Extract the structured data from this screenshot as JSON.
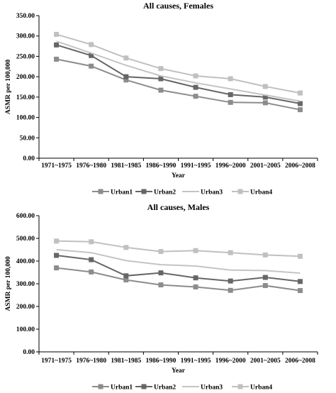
{
  "chart_data": [
    {
      "type": "line",
      "title": "All causes, Females",
      "xlabel": "Year",
      "ylabel": "ASMR per 100,000",
      "ylim": [
        0,
        350
      ],
      "yticks": [
        "0.00",
        "50.00",
        "100.00",
        "150.00",
        "200.00",
        "250.00",
        "300.00",
        "350.00"
      ],
      "categories": [
        "1971~1975",
        "1976~1980",
        "1981~1985",
        "1986~1990",
        "1991~1995",
        "1996~2000",
        "2001~2005",
        "2006~2008"
      ],
      "grid": false,
      "legend": "bottom",
      "series": [
        {
          "name": "Urban1",
          "color": "#8c8c8c",
          "marker": "square",
          "values": [
            243,
            226,
            192,
            167,
            152,
            137,
            136,
            119
          ]
        },
        {
          "name": "Urban2",
          "color": "#666666",
          "marker": "square",
          "values": [
            278,
            252,
            200,
            195,
            174,
            156,
            150,
            134
          ]
        },
        {
          "name": "Urban3",
          "color": "#c4c4c4",
          "marker": "none",
          "values": [
            287,
            258,
            228,
            202,
            185,
            170,
            155,
            140
          ]
        },
        {
          "name": "Urban4",
          "color": "#c0c0c0",
          "marker": "square",
          "values": [
            304,
            279,
            246,
            220,
            202,
            195,
            176,
            160
          ]
        }
      ]
    },
    {
      "type": "line",
      "title": "All causes, Males",
      "xlabel": "Year",
      "ylabel": "ASMR per 100,000",
      "ylim": [
        0,
        600
      ],
      "yticks": [
        "0.00",
        "100.00",
        "200.00",
        "300.00",
        "400.00",
        "500.00",
        "600.00"
      ],
      "categories": [
        "1971~1975",
        "1976~1980",
        "1981~1985",
        "1986~1990",
        "1991~1995",
        "1996~2000",
        "2001~2005",
        "2006~2008"
      ],
      "grid": false,
      "legend": "bottom",
      "series": [
        {
          "name": "Urban1",
          "color": "#8c8c8c",
          "marker": "square",
          "values": [
            370,
            352,
            317,
            295,
            286,
            271,
            292,
            270
          ]
        },
        {
          "name": "Urban2",
          "color": "#666666",
          "marker": "square",
          "values": [
            425,
            406,
            335,
            348,
            326,
            312,
            328,
            310
          ]
        },
        {
          "name": "Urban3",
          "color": "#c4c4c4",
          "marker": "none",
          "values": [
            450,
            437,
            402,
            384,
            378,
            360,
            358,
            347
          ]
        },
        {
          "name": "Urban4",
          "color": "#c0c0c0",
          "marker": "square",
          "values": [
            488,
            485,
            460,
            442,
            446,
            437,
            427,
            421
          ]
        }
      ]
    }
  ]
}
